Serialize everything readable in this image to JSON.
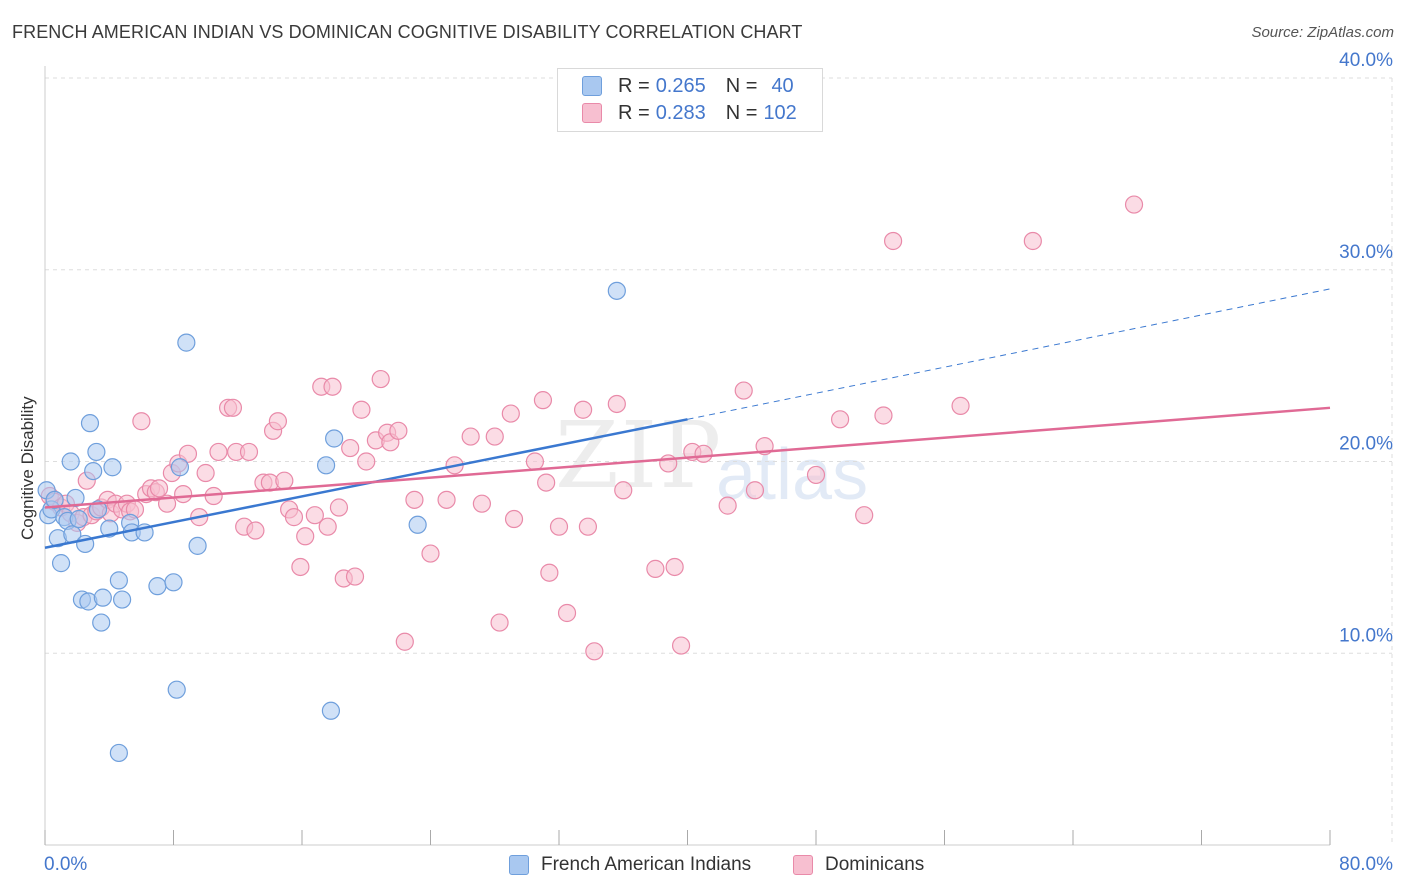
{
  "title": "FRENCH AMERICAN INDIAN VS DOMINICAN COGNITIVE DISABILITY CORRELATION CHART",
  "source": "Source: ZipAtlas.com",
  "watermark": {
    "zip": "ZIP",
    "atlas": "atlas"
  },
  "legend": {
    "rows": [
      {
        "r_label": "R =",
        "r_value": "0.265",
        "n_label": "N =",
        "n_value": "40"
      },
      {
        "r_label": "R =",
        "r_value": "0.283",
        "n_label": "N =",
        "n_value": "102"
      }
    ]
  },
  "bottom_legend": {
    "series1": "French American Indians",
    "series2": "Dominicans"
  },
  "colors": {
    "blue_fill": "#a9c8f0",
    "blue_stroke": "#6f9fdc",
    "blue_line": "#3a78d0",
    "pink_fill": "#f7bfd0",
    "pink_stroke": "#e98aa9",
    "pink_line": "#e06a95",
    "tick_label": "#4477cc",
    "grid": "#dddddd"
  },
  "chart_data": {
    "type": "scatter",
    "title": "FRENCH AMERICAN INDIAN VS DOMINICAN COGNITIVE DISABILITY CORRELATION CHART",
    "xlabel": "",
    "ylabel": "Cognitive Disability",
    "xlim": [
      0,
      80
    ],
    "ylim": [
      0,
      40
    ],
    "x_tick_labels": [
      "0.0%",
      "80.0%"
    ],
    "y_ticks": [
      10,
      20,
      30,
      40
    ],
    "y_tick_labels": [
      "10.0%",
      "20.0%",
      "30.0%",
      "40.0%"
    ],
    "grid": true,
    "legend_position": "top-center",
    "series": [
      {
        "name": "French American Indians",
        "color": "#a9c8f0",
        "R": 0.265,
        "N": 40,
        "trend": {
          "x": [
            0,
            40
          ],
          "y": [
            15.5,
            22.2
          ],
          "dashed_extension": {
            "x": [
              40,
              80
            ],
            "y": [
              22.2,
              29.0
            ]
          }
        },
        "points": [
          [
            0.1,
            18.5
          ],
          [
            0.2,
            17.2
          ],
          [
            0.4,
            17.5
          ],
          [
            0.6,
            18.0
          ],
          [
            0.8,
            16.0
          ],
          [
            1.0,
            14.7
          ],
          [
            1.2,
            17.1
          ],
          [
            1.4,
            16.9
          ],
          [
            1.6,
            20.0
          ],
          [
            1.7,
            16.2
          ],
          [
            1.9,
            18.1
          ],
          [
            2.1,
            17.0
          ],
          [
            2.3,
            12.8
          ],
          [
            2.5,
            15.7
          ],
          [
            2.7,
            12.7
          ],
          [
            2.8,
            22.0
          ],
          [
            3.0,
            19.5
          ],
          [
            3.2,
            20.5
          ],
          [
            3.3,
            17.5
          ],
          [
            3.5,
            11.6
          ],
          [
            3.6,
            12.9
          ],
          [
            4.0,
            16.5
          ],
          [
            4.2,
            19.7
          ],
          [
            4.6,
            13.8
          ],
          [
            4.8,
            12.8
          ],
          [
            5.3,
            16.8
          ],
          [
            5.4,
            16.3
          ],
          [
            6.2,
            16.3
          ],
          [
            7.0,
            13.5
          ],
          [
            8.0,
            13.7
          ],
          [
            8.2,
            8.1
          ],
          [
            8.4,
            19.7
          ],
          [
            8.8,
            26.2
          ],
          [
            9.5,
            15.6
          ],
          [
            17.5,
            19.8
          ],
          [
            17.8,
            7.0
          ],
          [
            18.0,
            21.2
          ],
          [
            23.2,
            16.7
          ],
          [
            4.6,
            4.8
          ],
          [
            35.6,
            28.9
          ]
        ]
      },
      {
        "name": "Dominicans",
        "color": "#f7bfd0",
        "R": 0.283,
        "N": 102,
        "trend": {
          "x": [
            0,
            80
          ],
          "y": [
            17.6,
            22.8
          ]
        },
        "points": [
          [
            0.3,
            18.2
          ],
          [
            0.6,
            17.9
          ],
          [
            1.0,
            17.6
          ],
          [
            1.3,
            17.8
          ],
          [
            1.6,
            17.3
          ],
          [
            2.0,
            16.8
          ],
          [
            2.4,
            17.1
          ],
          [
            2.6,
            19.0
          ],
          [
            2.9,
            17.2
          ],
          [
            3.2,
            17.4
          ],
          [
            3.5,
            17.6
          ],
          [
            3.9,
            18.0
          ],
          [
            4.1,
            17.3
          ],
          [
            4.4,
            17.8
          ],
          [
            4.8,
            17.5
          ],
          [
            5.1,
            17.8
          ],
          [
            5.3,
            17.4
          ],
          [
            5.6,
            17.5
          ],
          [
            6.0,
            22.1
          ],
          [
            6.3,
            18.3
          ],
          [
            6.6,
            18.6
          ],
          [
            6.9,
            18.4
          ],
          [
            7.1,
            18.6
          ],
          [
            7.6,
            17.8
          ],
          [
            7.9,
            19.4
          ],
          [
            8.3,
            19.9
          ],
          [
            8.6,
            18.3
          ],
          [
            8.9,
            20.4
          ],
          [
            9.6,
            17.1
          ],
          [
            10.0,
            19.4
          ],
          [
            10.5,
            18.2
          ],
          [
            10.8,
            20.5
          ],
          [
            11.4,
            22.8
          ],
          [
            11.7,
            22.8
          ],
          [
            11.9,
            20.5
          ],
          [
            12.4,
            16.6
          ],
          [
            12.7,
            20.5
          ],
          [
            13.1,
            16.4
          ],
          [
            13.6,
            18.9
          ],
          [
            14.0,
            18.9
          ],
          [
            14.2,
            21.6
          ],
          [
            14.5,
            22.1
          ],
          [
            14.9,
            19.0
          ],
          [
            15.2,
            17.5
          ],
          [
            15.5,
            17.1
          ],
          [
            15.9,
            14.5
          ],
          [
            16.2,
            16.1
          ],
          [
            16.8,
            17.2
          ],
          [
            17.2,
            23.9
          ],
          [
            17.6,
            16.6
          ],
          [
            17.9,
            23.9
          ],
          [
            18.3,
            17.6
          ],
          [
            18.6,
            13.9
          ],
          [
            19.0,
            20.7
          ],
          [
            19.3,
            14.0
          ],
          [
            19.7,
            22.7
          ],
          [
            20.0,
            20.0
          ],
          [
            20.6,
            21.1
          ],
          [
            20.9,
            24.3
          ],
          [
            21.3,
            21.5
          ],
          [
            21.5,
            21.0
          ],
          [
            22.0,
            21.6
          ],
          [
            22.4,
            10.6
          ],
          [
            23.0,
            18.0
          ],
          [
            24.0,
            15.2
          ],
          [
            25.0,
            18.0
          ],
          [
            25.5,
            19.8
          ],
          [
            26.5,
            21.3
          ],
          [
            27.2,
            17.8
          ],
          [
            28.0,
            21.3
          ],
          [
            28.3,
            11.6
          ],
          [
            29.0,
            22.5
          ],
          [
            29.2,
            17.0
          ],
          [
            30.5,
            20.0
          ],
          [
            31.0,
            23.2
          ],
          [
            31.2,
            18.9
          ],
          [
            31.4,
            14.2
          ],
          [
            32.0,
            16.6
          ],
          [
            32.5,
            12.1
          ],
          [
            33.5,
            22.7
          ],
          [
            33.8,
            16.6
          ],
          [
            34.2,
            10.1
          ],
          [
            35.6,
            23.0
          ],
          [
            36.0,
            18.5
          ],
          [
            38.0,
            14.4
          ],
          [
            38.8,
            19.9
          ],
          [
            39.2,
            14.5
          ],
          [
            39.6,
            10.4
          ],
          [
            40.3,
            20.5
          ],
          [
            41.0,
            20.4
          ],
          [
            42.5,
            17.7
          ],
          [
            43.5,
            23.7
          ],
          [
            44.2,
            18.5
          ],
          [
            44.8,
            20.8
          ],
          [
            48.0,
            19.3
          ],
          [
            49.5,
            22.2
          ],
          [
            51.0,
            17.2
          ],
          [
            52.2,
            22.4
          ],
          [
            52.8,
            31.5
          ],
          [
            57.0,
            22.9
          ],
          [
            67.8,
            33.4
          ],
          [
            61.5,
            31.5
          ]
        ]
      }
    ]
  }
}
